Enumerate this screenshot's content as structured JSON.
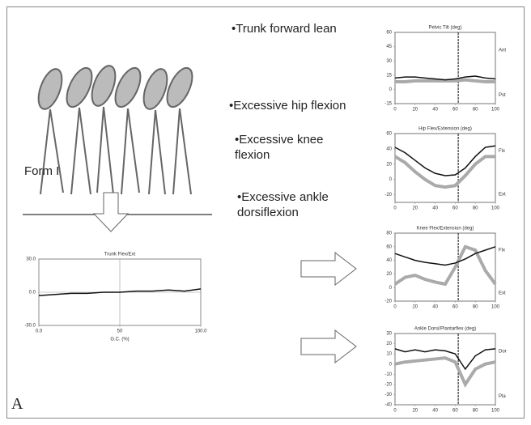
{
  "figure_label": "A",
  "form_label": "Form I",
  "findings": [
    "•Trunk forward lean",
    "•Excessive hip flexion",
    "•Excessive knee flexion",
    "•Excessive ankle dorsiflexion"
  ],
  "chart_data": [
    {
      "type": "line",
      "title": "Pelvic Tilt (deg)",
      "x": [
        0,
        10,
        20,
        30,
        40,
        50,
        60,
        70,
        80,
        90,
        100
      ],
      "series": [
        {
          "color": "#aaaaaa",
          "values": [
            8,
            8,
            9,
            9,
            9,
            9,
            9,
            10,
            9,
            8,
            8
          ]
        },
        {
          "color": "#111111",
          "values": [
            12,
            13,
            13,
            12,
            11,
            10,
            11,
            13,
            14,
            12,
            11
          ]
        }
      ],
      "xlim": [
        0,
        100
      ],
      "xticks": [
        0,
        20,
        40,
        60,
        80,
        100
      ],
      "ylim": [
        -15,
        60
      ],
      "yticks": [
        -15,
        0,
        15,
        30,
        45,
        60
      ],
      "vlines": [
        63
      ],
      "annotations": [
        "Ant",
        "Pst"
      ]
    },
    {
      "type": "line",
      "title": "Hip Flex/Extension (deg)",
      "x": [
        0,
        10,
        20,
        30,
        40,
        50,
        60,
        70,
        80,
        90,
        100
      ],
      "series": [
        {
          "color": "#aaaaaa",
          "values": [
            30,
            22,
            10,
            0,
            -8,
            -10,
            -8,
            5,
            20,
            30,
            30
          ]
        },
        {
          "color": "#111111",
          "values": [
            42,
            35,
            25,
            15,
            8,
            5,
            6,
            15,
            30,
            42,
            44
          ]
        }
      ],
      "xlim": [
        0,
        100
      ],
      "xticks": [
        0,
        20,
        40,
        60,
        80,
        100
      ],
      "ylim": [
        -30,
        60
      ],
      "yticks": [
        -20,
        0,
        20,
        40,
        60
      ],
      "vlines": [
        63
      ],
      "annotations": [
        "Flx",
        "Ext"
      ]
    },
    {
      "type": "line",
      "title": "Knee Flex/Extension (deg)",
      "x": [
        0,
        10,
        20,
        30,
        40,
        50,
        60,
        70,
        80,
        90,
        100
      ],
      "series": [
        {
          "color": "#aaaaaa",
          "values": [
            5,
            15,
            18,
            12,
            8,
            5,
            30,
            60,
            55,
            25,
            5
          ]
        },
        {
          "color": "#111111",
          "values": [
            50,
            45,
            40,
            37,
            35,
            33,
            36,
            42,
            50,
            55,
            60
          ]
        }
      ],
      "xlim": [
        0,
        100
      ],
      "xticks": [
        0,
        20,
        40,
        60,
        80,
        100
      ],
      "ylim": [
        -20,
        80
      ],
      "yticks": [
        -20,
        0,
        20,
        40,
        60,
        80
      ],
      "vlines": [
        63
      ],
      "annotations": [
        "Flx",
        "Ext"
      ]
    },
    {
      "type": "line",
      "title": "Ankle Dorsi/Plantarflex (deg)",
      "x": [
        0,
        10,
        20,
        30,
        40,
        50,
        60,
        70,
        80,
        90,
        100
      ],
      "series": [
        {
          "color": "#aaaaaa",
          "values": [
            0,
            2,
            3,
            4,
            5,
            6,
            2,
            -20,
            -5,
            0,
            2
          ]
        },
        {
          "color": "#111111",
          "values": [
            15,
            12,
            14,
            12,
            14,
            13,
            10,
            -5,
            8,
            14,
            15
          ]
        }
      ],
      "xlim": [
        0,
        100
      ],
      "xticks": [
        0,
        20,
        40,
        60,
        80,
        100
      ],
      "ylim": [
        -40,
        30
      ],
      "yticks": [
        -40,
        -30,
        -20,
        -10,
        0,
        10,
        20,
        30
      ],
      "vlines": [
        63
      ],
      "annotations": [
        "Dor",
        "Pla"
      ]
    },
    {
      "type": "line",
      "title": "Trunk Flex/Ext",
      "x_label": "G.C. (%)",
      "x": [
        0,
        10,
        20,
        30,
        40,
        50,
        60,
        70,
        80,
        90,
        100
      ],
      "series": [
        {
          "color": "#111111",
          "values": [
            -3,
            -2,
            -1,
            -1,
            0,
            0,
            1,
            1,
            2,
            1,
            3
          ]
        }
      ],
      "xlim": [
        0,
        100
      ],
      "xticks": [
        {
          "value": 0,
          "label": "0.0"
        },
        50,
        {
          "value": 100,
          "label": "100.0"
        }
      ],
      "ylim": [
        -30,
        30
      ],
      "yticks": [
        {
          "value": -30,
          "label": "-30.0"
        },
        {
          "value": 0,
          "label": "0.0"
        },
        {
          "value": 30,
          "label": "30.0"
        }
      ],
      "grid": true
    }
  ]
}
